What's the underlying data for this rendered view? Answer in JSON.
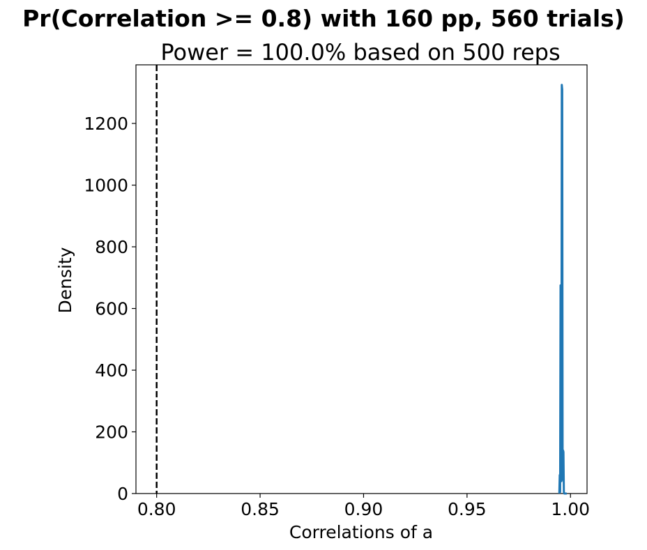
{
  "chart_data": {
    "type": "line",
    "title": "Pr(Correlation >= 0.8) with 160 pp, 560 trials)",
    "subtitle": "Power = 100.0% based on 500 reps",
    "xlabel": "Correlations of a",
    "ylabel": "Density",
    "xlim": [
      0.79,
      1.008
    ],
    "ylim": [
      0,
      1390
    ],
    "x_ticks": [
      "0.80",
      "0.85",
      "0.90",
      "0.95",
      "1.00"
    ],
    "y_ticks": [
      "0",
      "200",
      "400",
      "600",
      "800",
      "1000",
      "1200"
    ],
    "threshold": 0.8,
    "threshold_style": "dashed",
    "legend": "none",
    "grid": false,
    "series": [
      {
        "color": "#1f77b4",
        "x": [
          0.9946,
          0.9948,
          0.995,
          0.9952,
          0.9954,
          0.9956,
          0.9958,
          0.996,
          0.9962,
          0.9964,
          0.9966,
          0.9968,
          0.997,
          0.9972,
          0.9974,
          0.9976,
          0.9978,
          0.998,
          0.9982
        ],
        "y": [
          0,
          60,
          5,
          675,
          660,
          40,
          1325,
          1310,
          45,
          140,
          135,
          5,
          0,
          0,
          0,
          0,
          0,
          0,
          0
        ]
      }
    ]
  }
}
